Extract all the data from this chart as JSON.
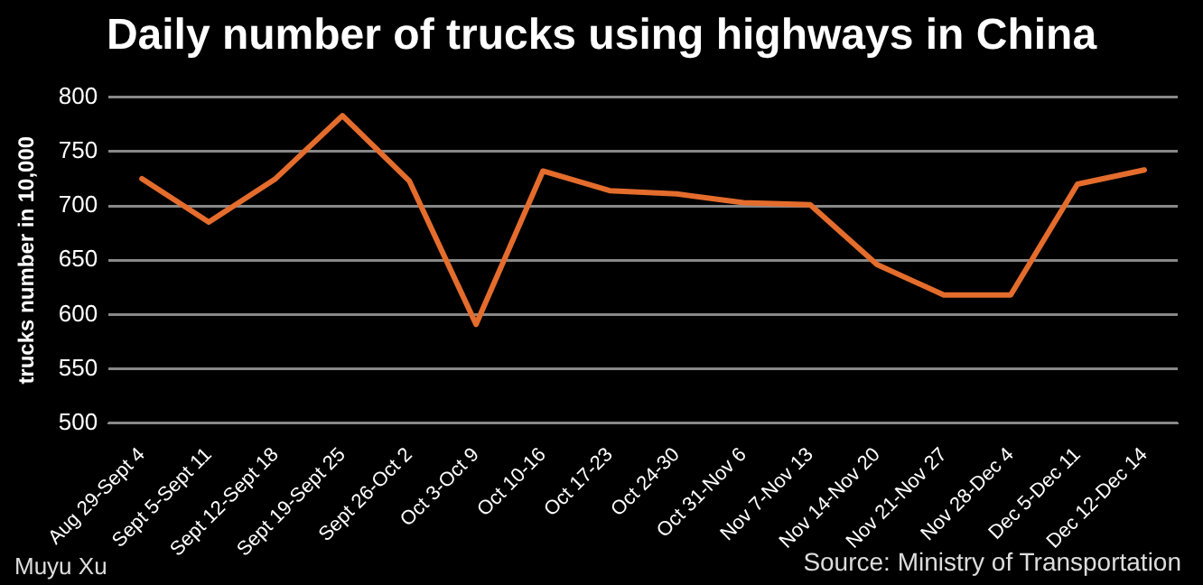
{
  "chart_data": {
    "type": "line",
    "title": "Daily number of trucks using highways in China",
    "ylabel": "trucks number in 10,000",
    "categories": [
      "Aug 29-Sept 4",
      "Sept 5-Sept 11",
      "Sept 12-Sept 18",
      "Sept 19-Sept 25",
      "Sept 26-Oct 2",
      "Oct 3-Oct 9",
      "Oct 10-16",
      "Oct 17-23",
      "Oct 24-30",
      "Oct 31-Nov 6",
      "Nov 7-Nov 13",
      "Nov 14-Nov 20",
      "Nov 21-Nov 27",
      "Nov 28-Dec 4",
      "Dec 5-Dec 11",
      "Dec 12-Dec 14"
    ],
    "series": [
      {
        "color": "#e46c2c",
        "values": [
          725,
          685,
          725,
          783,
          723,
          591,
          732,
          714,
          711,
          703,
          701,
          646,
          618,
          618,
          720,
          733
        ]
      }
    ],
    "ylim": [
      500,
      800
    ],
    "yticks": [
      500,
      550,
      600,
      650,
      700,
      750,
      800
    ],
    "grid": "y",
    "legend": false,
    "marker": "none",
    "line_style": "solid",
    "annotations": [
      "Muyu Xu",
      "Source: Ministry of Transportation"
    ]
  }
}
